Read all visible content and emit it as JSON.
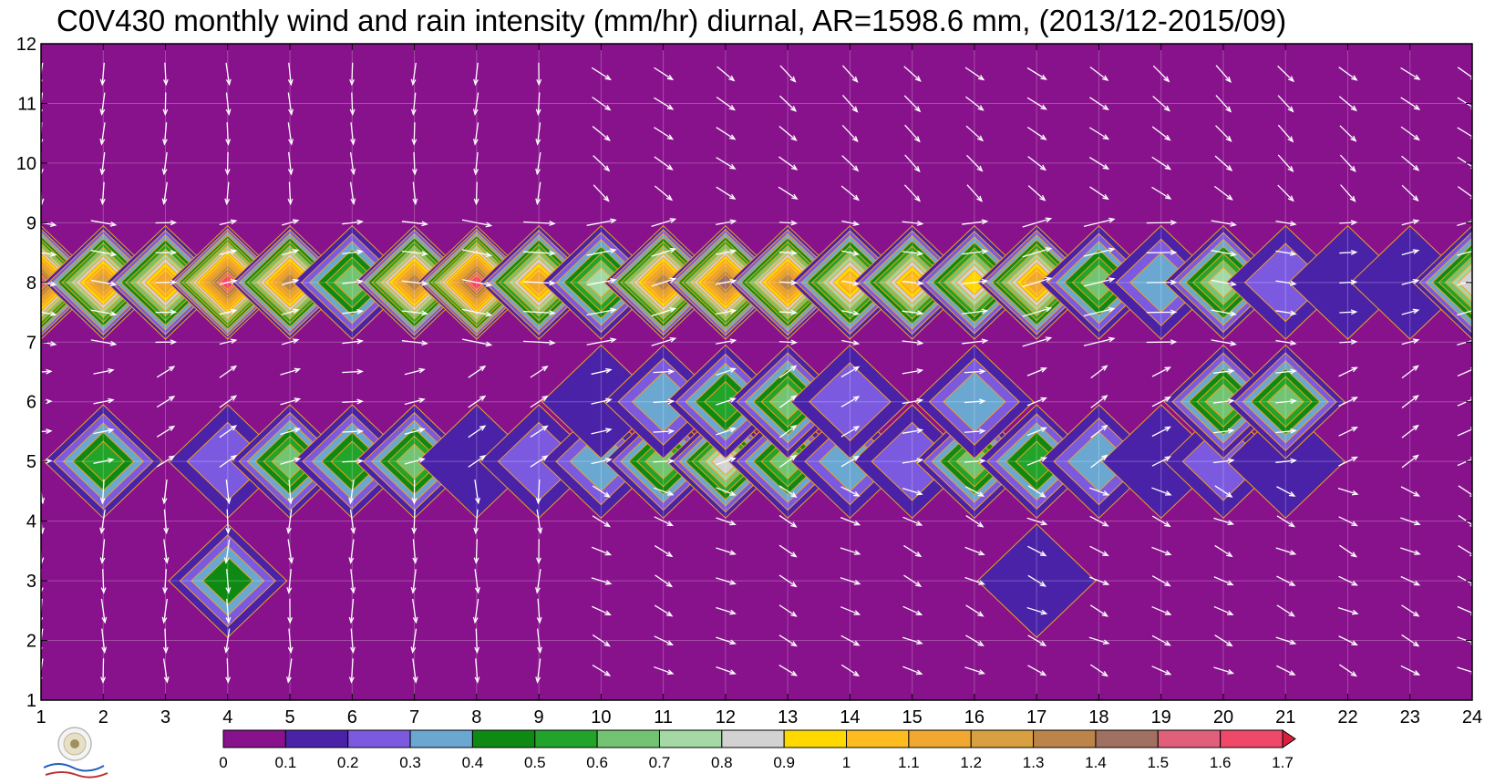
{
  "title": "C0V430 monthly wind and rain intensity (mm/hr) diurnal, AR=1598.6 mm, (2013/12-2015/09)",
  "chart_data": {
    "type": "heatmap",
    "subtype": "filled-contour with wind vectors",
    "x_ticks": [
      "1",
      "2",
      "3",
      "4",
      "5",
      "6",
      "7",
      "8",
      "9",
      "10",
      "11",
      "12",
      "13",
      "14",
      "15",
      "16",
      "17",
      "18",
      "19",
      "20",
      "21",
      "22",
      "23",
      "24"
    ],
    "y_ticks": [
      "1",
      "2",
      "3",
      "4",
      "5",
      "6",
      "7",
      "8",
      "9",
      "10",
      "11",
      "12"
    ],
    "xlim": [
      1,
      24
    ],
    "ylim": [
      1,
      12
    ],
    "grid": true,
    "colorbar": {
      "ticks": [
        "0",
        "0.1",
        "0.2",
        "0.3",
        "0.4",
        "0.5",
        "0.6",
        "0.7",
        "0.8",
        "0.9",
        "1",
        "1.1",
        "1.2",
        "1.3",
        "1.4",
        "1.5",
        "1.6",
        "1.7"
      ],
      "colors": [
        "#88118c",
        "#4a22a8",
        "#7b5ae0",
        "#6aa8d2",
        "#0e8a14",
        "#22a32a",
        "#72c472",
        "#a4d8a4",
        "#d2d2d2",
        "#ffd800",
        "#ffbc20",
        "#f0a830",
        "#d8a040",
        "#bc8448",
        "#a07060",
        "#e0607c",
        "#f04868",
        "#d8203c"
      ]
    },
    "levels": [
      0,
      0.1,
      0.2,
      0.3,
      0.4,
      0.5,
      0.6,
      0.7,
      0.8,
      0.9,
      1.0,
      1.1,
      1.2,
      1.3,
      1.4,
      1.5,
      1.6,
      1.7
    ],
    "rain_bands": [
      {
        "month": 8,
        "hours": [
          1,
          2,
          3,
          4,
          5,
          6,
          7,
          8,
          9,
          10,
          11,
          12,
          13,
          14,
          15,
          16,
          17,
          18,
          19,
          20,
          21,
          22,
          23,
          24
        ],
        "values": [
          1.5,
          1.2,
          1.1,
          1.6,
          1.3,
          0.6,
          1.3,
          1.6,
          1.1,
          0.7,
          1.3,
          1.4,
          1.3,
          1.0,
          1.0,
          0.9,
          1.1,
          0.6,
          0.3,
          0.7,
          0.2,
          0.1,
          0.1,
          0.8
        ]
      },
      {
        "month": 5,
        "hours": [
          2,
          4,
          5,
          6,
          7,
          8,
          9,
          10,
          11,
          12,
          13,
          14,
          15,
          16,
          17,
          18,
          19,
          20,
          21
        ],
        "values": [
          0.5,
          0.2,
          0.6,
          0.5,
          0.6,
          0.1,
          0.2,
          0.3,
          0.6,
          0.8,
          0.6,
          0.3,
          0.2,
          0.6,
          0.5,
          0.3,
          0.1,
          0.2,
          0.1
        ]
      },
      {
        "month": 6,
        "hours": [
          10,
          11,
          12,
          13,
          14,
          16,
          20,
          21
        ],
        "values": [
          0.1,
          0.3,
          0.5,
          0.6,
          0.2,
          0.3,
          0.6,
          0.6
        ]
      },
      {
        "month": 3,
        "hours": [
          4,
          17
        ],
        "values": [
          0.4,
          0.1
        ]
      }
    ],
    "wind_note": "white arrows show mean wind direction per hour and month"
  }
}
